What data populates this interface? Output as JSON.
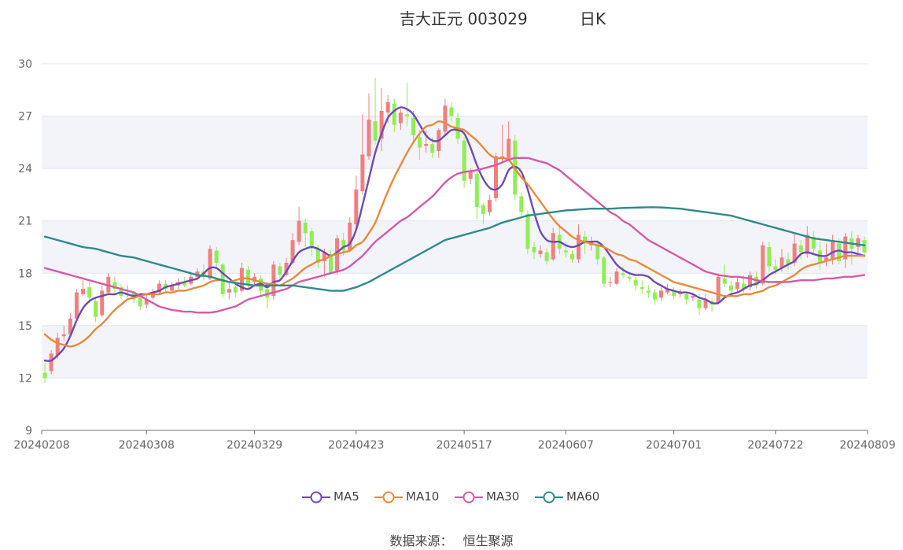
{
  "title": {
    "stock": "吉大正元 003029",
    "period": "日K"
  },
  "chart_data": {
    "type": "candlestick",
    "ylim": [
      9,
      30
    ],
    "yticks": [
      9,
      12,
      15,
      18,
      21,
      24,
      27,
      30
    ],
    "xticks": [
      "20240208",
      "20240308",
      "20240329",
      "20240423",
      "20240517",
      "20240607",
      "20240701",
      "20240722",
      "20240809"
    ],
    "n_bars": 130,
    "up_color": "#f08080",
    "down_color": "#90ee55",
    "candles": [
      [
        12.3,
        12.0,
        12.9,
        11.7
      ],
      [
        12.4,
        13.4,
        13.6,
        12.2
      ],
      [
        13.3,
        14.3,
        14.6,
        13.1
      ],
      [
        14.4,
        14.5,
        15.0,
        14.1
      ],
      [
        14.5,
        15.4,
        15.7,
        14.4
      ],
      [
        15.4,
        16.9,
        17.1,
        15.3
      ],
      [
        16.8,
        17.1,
        17.6,
        16.7
      ],
      [
        17.2,
        16.6,
        17.5,
        16.3
      ],
      [
        16.4,
        15.5,
        16.6,
        15.2
      ],
      [
        15.6,
        17.0,
        17.3,
        15.5
      ],
      [
        16.9,
        17.8,
        18.0,
        16.8
      ],
      [
        17.5,
        17.1,
        17.8,
        16.9
      ],
      [
        17.2,
        16.7,
        17.4,
        16.5
      ],
      [
        16.8,
        16.8,
        17.3,
        16.6
      ],
      [
        16.9,
        16.5,
        17.0,
        16.3
      ],
      [
        16.6,
        16.1,
        16.8,
        15.9
      ],
      [
        16.2,
        16.5,
        16.8,
        16.0
      ],
      [
        16.6,
        16.9,
        17.1,
        16.5
      ],
      [
        16.9,
        17.4,
        17.6,
        16.8
      ],
      [
        17.4,
        17.1,
        17.6,
        16.9
      ],
      [
        17.0,
        17.3,
        17.5,
        16.9
      ],
      [
        17.3,
        17.5,
        17.7,
        17.1
      ],
      [
        17.5,
        17.3,
        17.8,
        17.2
      ],
      [
        17.4,
        17.8,
        18.1,
        17.3
      ],
      [
        17.8,
        18.1,
        18.3,
        17.6
      ],
      [
        18.1,
        17.8,
        18.5,
        17.6
      ],
      [
        17.7,
        19.4,
        19.6,
        17.6
      ],
      [
        19.3,
        18.6,
        19.5,
        18.3
      ],
      [
        18.5,
        16.8,
        18.6,
        16.6
      ],
      [
        16.9,
        17.1,
        17.5,
        16.5
      ],
      [
        17.2,
        16.9,
        17.3,
        16.6
      ],
      [
        17.0,
        18.3,
        18.6,
        16.9
      ],
      [
        18.2,
        17.4,
        18.4,
        17.1
      ],
      [
        17.5,
        17.8,
        18.0,
        17.3
      ],
      [
        17.7,
        17.0,
        17.9,
        16.7
      ],
      [
        17.1,
        16.6,
        17.2,
        16.0
      ],
      [
        16.7,
        18.5,
        18.7,
        16.5
      ],
      [
        18.4,
        17.9,
        18.6,
        17.6
      ],
      [
        17.9,
        18.6,
        18.9,
        17.8
      ],
      [
        18.6,
        19.9,
        20.3,
        18.5
      ],
      [
        19.8,
        21.0,
        21.8,
        19.6
      ],
      [
        20.9,
        20.3,
        21.1,
        19.5
      ],
      [
        20.4,
        19.5,
        20.6,
        19.0
      ],
      [
        19.4,
        18.6,
        19.6,
        18.3
      ],
      [
        18.7,
        19.2,
        19.4,
        17.8
      ],
      [
        19.1,
        18.0,
        19.3,
        17.9
      ],
      [
        18.1,
        20.0,
        20.2,
        17.9
      ],
      [
        19.9,
        19.3,
        20.3,
        19.0
      ],
      [
        19.3,
        20.9,
        21.2,
        19.2
      ],
      [
        20.8,
        22.8,
        23.6,
        20.6
      ],
      [
        22.7,
        24.8,
        27.1,
        22.5
      ],
      [
        24.7,
        26.8,
        28.3,
        24.5
      ],
      [
        26.7,
        25.6,
        29.2,
        25.4
      ],
      [
        25.7,
        27.3,
        28.6,
        25.0
      ],
      [
        27.2,
        27.8,
        28.2,
        26.6
      ],
      [
        27.7,
        26.5,
        28.0,
        26.1
      ],
      [
        26.6,
        27.2,
        27.4,
        26.2
      ],
      [
        27.1,
        27.0,
        28.9,
        26.4
      ],
      [
        26.9,
        25.9,
        27.3,
        25.5
      ],
      [
        25.8,
        25.2,
        26.2,
        24.5
      ],
      [
        25.3,
        25.4,
        26.2,
        24.9
      ],
      [
        25.4,
        24.9,
        25.8,
        24.6
      ],
      [
        25.0,
        26.2,
        26.3,
        24.6
      ],
      [
        26.1,
        27.6,
        28.0,
        25.9
      ],
      [
        27.5,
        27.0,
        27.8,
        26.7
      ],
      [
        26.9,
        25.7,
        27.2,
        25.4
      ],
      [
        25.6,
        23.3,
        25.8,
        22.9
      ],
      [
        23.4,
        23.8,
        24.0,
        23.1
      ],
      [
        23.7,
        21.8,
        23.9,
        21.1
      ],
      [
        21.9,
        21.4,
        22.0,
        20.8
      ],
      [
        21.5,
        22.2,
        22.5,
        21.3
      ],
      [
        22.3,
        24.7,
        24.9,
        22.1
      ],
      [
        24.6,
        24.7,
        26.5,
        24.3
      ],
      [
        24.6,
        25.7,
        26.7,
        24.4
      ],
      [
        25.6,
        22.5,
        25.9,
        22.2
      ],
      [
        22.4,
        21.5,
        22.6,
        21.2
      ],
      [
        21.4,
        19.4,
        21.6,
        19.1
      ],
      [
        19.5,
        19.2,
        19.8,
        18.8
      ],
      [
        19.1,
        19.3,
        19.6,
        18.9
      ],
      [
        19.2,
        18.7,
        19.4,
        18.5
      ],
      [
        18.8,
        20.3,
        20.6,
        18.7
      ],
      [
        20.2,
        19.4,
        20.8,
        19.1
      ],
      [
        19.3,
        19.2,
        19.8,
        18.9
      ],
      [
        19.1,
        18.8,
        19.3,
        18.6
      ],
      [
        18.8,
        20.2,
        20.8,
        18.6
      ],
      [
        20.1,
        19.7,
        20.4,
        19.1
      ],
      [
        19.6,
        19.8,
        20.1,
        19.3
      ],
      [
        19.7,
        18.8,
        19.9,
        18.5
      ],
      [
        18.9,
        17.4,
        19.0,
        17.2
      ],
      [
        17.5,
        17.5,
        17.8,
        17.2
      ],
      [
        17.4,
        18.1,
        18.3,
        17.3
      ],
      [
        18.0,
        17.9,
        18.4,
        17.7
      ],
      [
        17.8,
        17.7,
        18.0,
        17.5
      ],
      [
        17.6,
        17.3,
        17.8,
        17.0
      ],
      [
        17.2,
        17.1,
        17.6,
        16.8
      ],
      [
        17.0,
        16.9,
        17.3,
        16.6
      ],
      [
        16.9,
        16.5,
        17.1,
        16.2
      ],
      [
        16.6,
        17.0,
        17.2,
        16.4
      ],
      [
        16.9,
        17.1,
        17.4,
        16.8
      ],
      [
        17.0,
        16.7,
        17.2,
        16.5
      ],
      [
        16.8,
        16.9,
        17.1,
        16.6
      ],
      [
        16.8,
        16.5,
        17.0,
        16.2
      ],
      [
        16.6,
        16.7,
        16.9,
        16.4
      ],
      [
        16.5,
        16.0,
        16.8,
        15.6
      ],
      [
        16.0,
        16.5,
        16.8,
        15.9
      ],
      [
        16.4,
        16.2,
        16.6,
        15.8
      ],
      [
        16.3,
        17.8,
        18.0,
        16.2
      ],
      [
        17.7,
        17.4,
        18.5,
        17.2
      ],
      [
        17.3,
        17.0,
        17.6,
        16.8
      ],
      [
        17.1,
        17.5,
        17.8,
        16.9
      ],
      [
        17.4,
        17.1,
        17.9,
        16.9
      ],
      [
        17.2,
        17.9,
        18.1,
        17.0
      ],
      [
        17.8,
        17.3,
        18.1,
        17.1
      ],
      [
        17.4,
        19.6,
        19.8,
        17.3
      ],
      [
        19.5,
        18.4,
        19.8,
        18.1
      ],
      [
        18.4,
        18.2,
        18.8,
        17.9
      ],
      [
        18.3,
        18.9,
        19.4,
        18.1
      ],
      [
        18.8,
        18.5,
        19.2,
        18.2
      ],
      [
        18.6,
        19.7,
        20.3,
        18.4
      ],
      [
        19.6,
        19.2,
        19.9,
        18.8
      ],
      [
        19.1,
        20.2,
        20.7,
        18.9
      ],
      [
        20.1,
        19.4,
        20.4,
        19.0
      ],
      [
        19.3,
        18.6,
        19.8,
        18.2
      ],
      [
        18.7,
        18.9,
        19.7,
        18.4
      ],
      [
        18.8,
        19.8,
        20.2,
        18.5
      ],
      [
        19.7,
        18.7,
        20.0,
        18.5
      ],
      [
        18.8,
        20.1,
        20.3,
        18.3
      ],
      [
        20.0,
        19.4,
        20.4,
        18.5
      ],
      [
        19.5,
        20.0,
        20.2,
        19.1
      ],
      [
        19.9,
        19.2,
        20.1,
        18.9
      ]
    ],
    "series": [
      {
        "name": "MA5",
        "color": "#6f4ab3",
        "values": [
          13.0,
          13.0,
          13.3,
          13.7,
          14.4,
          15.3,
          16.0,
          16.4,
          16.6,
          16.7,
          16.8,
          16.8,
          16.9,
          16.8,
          16.7,
          16.8,
          16.8,
          16.9,
          17.0,
          17.2,
          17.3,
          17.4,
          17.5,
          17.6,
          17.7,
          18.0,
          18.3,
          18.3,
          18.0,
          17.7,
          17.4,
          17.2,
          17.1,
          17.3,
          17.4,
          17.2,
          17.5,
          17.6,
          18.1,
          18.7,
          19.2,
          19.4,
          19.5,
          19.4,
          19.2,
          19.0,
          19.2,
          19.5,
          19.7,
          20.5,
          21.9,
          23.4,
          24.9,
          26.0,
          26.9,
          27.3,
          27.5,
          27.4,
          27.1,
          26.5,
          25.9,
          25.6,
          25.6,
          25.9,
          26.2,
          26.2,
          26.0,
          25.2,
          24.2,
          23.4,
          22.9,
          22.8,
          23.1,
          23.9,
          24.1,
          23.8,
          22.8,
          21.5,
          20.4,
          19.9,
          19.8,
          19.8,
          19.6,
          19.5,
          19.6,
          19.8,
          19.8,
          19.8,
          19.5,
          19.0,
          18.5,
          18.2,
          18.0,
          17.9,
          17.9,
          17.8,
          17.5,
          17.3,
          17.1,
          17.0,
          16.9,
          16.9,
          16.8,
          16.6,
          16.5,
          16.3,
          16.3,
          16.6,
          16.8,
          16.9,
          17.1,
          17.3,
          17.4,
          17.6,
          17.9,
          18.1,
          18.3,
          18.5,
          18.7,
          19.1,
          19.2,
          19.1,
          19.0,
          19.0,
          19.2,
          19.3,
          19.2,
          19.2,
          19.1,
          19.0
        ]
      },
      {
        "name": "MA10",
        "color": "#e88a3c",
        "values": [
          14.5,
          14.2,
          14.0,
          13.9,
          13.8,
          13.9,
          14.1,
          14.4,
          14.8,
          15.1,
          15.5,
          15.9,
          16.2,
          16.5,
          16.6,
          16.7,
          16.8,
          16.8,
          16.8,
          16.9,
          16.9,
          17.0,
          17.0,
          17.1,
          17.2,
          17.3,
          17.5,
          17.6,
          17.6,
          17.5,
          17.6,
          17.7,
          17.7,
          17.6,
          17.5,
          17.4,
          17.4,
          17.3,
          17.5,
          17.7,
          18.0,
          18.3,
          18.5,
          18.7,
          18.8,
          19.0,
          19.1,
          19.2,
          19.3,
          19.6,
          19.8,
          20.3,
          20.9,
          21.8,
          22.7,
          23.5,
          24.2,
          24.9,
          25.5,
          26.0,
          26.4,
          26.5,
          26.7,
          26.6,
          26.4,
          26.3,
          26.2,
          25.9,
          25.6,
          25.2,
          24.8,
          24.6,
          24.6,
          24.5,
          24.0,
          23.5,
          23.1,
          22.6,
          22.1,
          21.6,
          21.1,
          20.7,
          20.4,
          20.1,
          19.9,
          19.8,
          19.7,
          19.6,
          19.5,
          19.3,
          19.1,
          19.0,
          18.8,
          18.7,
          18.5,
          18.3,
          18.1,
          17.9,
          17.7,
          17.5,
          17.4,
          17.3,
          17.2,
          17.1,
          17.0,
          16.9,
          16.8,
          16.7,
          16.7,
          16.7,
          16.8,
          16.8,
          16.9,
          17.0,
          17.2,
          17.3,
          17.5,
          17.7,
          17.9,
          18.2,
          18.4,
          18.5,
          18.6,
          18.7,
          18.8,
          18.9,
          19.0,
          19.0,
          19.0,
          19.0
        ]
      },
      {
        "name": "MA30",
        "color": "#d45aa7",
        "values": [
          18.3,
          18.2,
          18.1,
          18.0,
          17.9,
          17.8,
          17.7,
          17.6,
          17.5,
          17.4,
          17.3,
          17.2,
          17.1,
          17.0,
          16.9,
          16.7,
          16.5,
          16.3,
          16.1,
          16.0,
          15.9,
          15.85,
          15.8,
          15.8,
          15.75,
          15.75,
          15.75,
          15.8,
          15.9,
          16.0,
          16.1,
          16.3,
          16.5,
          16.6,
          16.7,
          16.8,
          16.9,
          17.0,
          17.1,
          17.3,
          17.5,
          17.6,
          17.7,
          17.8,
          17.9,
          18.0,
          18.1,
          18.2,
          18.4,
          18.7,
          19.0,
          19.4,
          19.8,
          20.1,
          20.4,
          20.7,
          21.0,
          21.2,
          21.5,
          21.8,
          22.1,
          22.4,
          22.8,
          23.2,
          23.5,
          23.7,
          23.8,
          23.85,
          23.9,
          24.0,
          24.1,
          24.2,
          24.35,
          24.5,
          24.6,
          24.6,
          24.6,
          24.5,
          24.4,
          24.3,
          24.1,
          23.9,
          23.6,
          23.3,
          23.0,
          22.7,
          22.4,
          22.1,
          21.8,
          21.5,
          21.3,
          21.0,
          20.8,
          20.5,
          20.2,
          19.9,
          19.7,
          19.5,
          19.3,
          19.1,
          18.9,
          18.7,
          18.5,
          18.3,
          18.1,
          18.0,
          17.9,
          17.85,
          17.8,
          17.8,
          17.75,
          17.7,
          17.6,
          17.55,
          17.5,
          17.5,
          17.5,
          17.5,
          17.55,
          17.6,
          17.6,
          17.6,
          17.65,
          17.7,
          17.7,
          17.75,
          17.8,
          17.8,
          17.85,
          17.9
        ]
      },
      {
        "name": "MA60",
        "color": "#2e8b8b",
        "values": [
          20.1,
          20.0,
          19.9,
          19.8,
          19.7,
          19.6,
          19.5,
          19.45,
          19.4,
          19.3,
          19.2,
          19.1,
          19.0,
          18.95,
          18.9,
          18.8,
          18.7,
          18.6,
          18.5,
          18.4,
          18.3,
          18.2,
          18.1,
          18.0,
          17.9,
          17.85,
          17.8,
          17.7,
          17.6,
          17.5,
          17.45,
          17.4,
          17.35,
          17.3,
          17.3,
          17.3,
          17.3,
          17.3,
          17.3,
          17.3,
          17.25,
          17.2,
          17.15,
          17.1,
          17.05,
          17.0,
          17.0,
          17.0,
          17.1,
          17.2,
          17.35,
          17.5,
          17.7,
          17.9,
          18.1,
          18.3,
          18.5,
          18.7,
          18.9,
          19.1,
          19.3,
          19.5,
          19.7,
          19.9,
          20.0,
          20.1,
          20.2,
          20.3,
          20.4,
          20.5,
          20.6,
          20.75,
          20.9,
          21.0,
          21.1,
          21.2,
          21.3,
          21.35,
          21.4,
          21.45,
          21.5,
          21.55,
          21.6,
          21.62,
          21.65,
          21.67,
          21.7,
          21.7,
          21.7,
          21.7,
          21.72,
          21.74,
          21.75,
          21.76,
          21.77,
          21.78,
          21.78,
          21.77,
          21.75,
          21.72,
          21.7,
          21.65,
          21.6,
          21.55,
          21.5,
          21.45,
          21.4,
          21.35,
          21.3,
          21.2,
          21.1,
          21.0,
          20.9,
          20.8,
          20.7,
          20.6,
          20.5,
          20.4,
          20.3,
          20.2,
          20.1,
          20.0,
          19.95,
          19.9,
          19.85,
          19.8,
          19.75,
          19.7,
          19.65,
          19.6
        ]
      }
    ]
  },
  "legend": [
    {
      "name": "MA5",
      "color": "#6f4ab3"
    },
    {
      "name": "MA10",
      "color": "#e88a3c"
    },
    {
      "name": "MA30",
      "color": "#d45aa7"
    },
    {
      "name": "MA60",
      "color": "#2e8b8b"
    }
  ],
  "source": {
    "label": "数据来源：",
    "value": "恒生聚源"
  }
}
